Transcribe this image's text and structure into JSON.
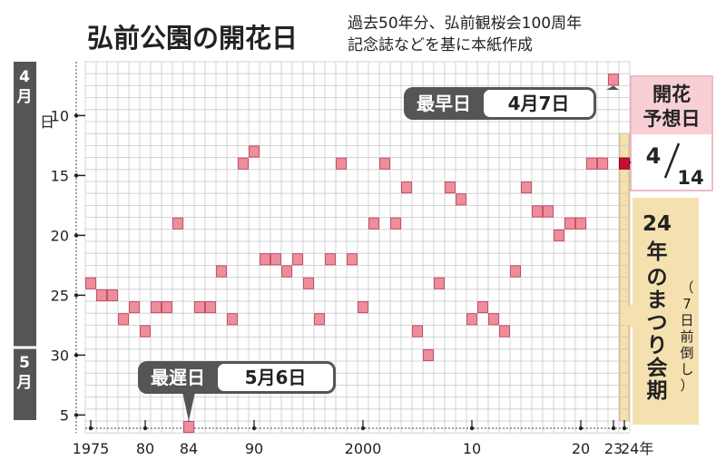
{
  "header": {
    "title": "弘前公園の開花日",
    "subtitle_line1": "過去50年分、弘前観桜会100周年",
    "subtitle_line2": "記念誌などを基に本紙作成"
  },
  "chart_data": {
    "type": "scatter",
    "title": "弘前公園の開花日",
    "x_start": 1975,
    "x_end": 2024,
    "x_tick_labels": [
      {
        "year": 1975,
        "label": "1975"
      },
      {
        "year": 1980,
        "label": "80"
      },
      {
        "year": 1984,
        "label": "84"
      },
      {
        "year": 1990,
        "label": "90"
      },
      {
        "year": 2000,
        "label": "2000"
      },
      {
        "year": 2010,
        "label": "10"
      },
      {
        "year": 2020,
        "label": "20"
      },
      {
        "year": 2023,
        "label": "23"
      },
      {
        "year": 2024,
        "label": "24年"
      }
    ],
    "y_axis": "day of April (31 = May 1)",
    "ylim": [
      6,
      37
    ],
    "y_tick_labels": [
      {
        "day": 10,
        "label": "10"
      },
      {
        "day": 15,
        "label": "15"
      },
      {
        "day": 20,
        "label": "20"
      },
      {
        "day": 25,
        "label": "25"
      },
      {
        "day": 30,
        "label": "30"
      },
      {
        "day": 35,
        "label": "5"
      }
    ],
    "month_labels": {
      "april": "4月",
      "april_day_unit": "日",
      "may": "5月"
    },
    "points": [
      {
        "year": 1975,
        "day": 24
      },
      {
        "year": 1976,
        "day": 25
      },
      {
        "year": 1977,
        "day": 25
      },
      {
        "year": 1978,
        "day": 27
      },
      {
        "year": 1979,
        "day": 26
      },
      {
        "year": 1980,
        "day": 28
      },
      {
        "year": 1981,
        "day": 26
      },
      {
        "year": 1982,
        "day": 26
      },
      {
        "year": 1983,
        "day": 19
      },
      {
        "year": 1984,
        "day": 36
      },
      {
        "year": 1985,
        "day": 26
      },
      {
        "year": 1986,
        "day": 26
      },
      {
        "year": 1987,
        "day": 23
      },
      {
        "year": 1988,
        "day": 27
      },
      {
        "year": 1989,
        "day": 14
      },
      {
        "year": 1990,
        "day": 13
      },
      {
        "year": 1991,
        "day": 22
      },
      {
        "year": 1992,
        "day": 22
      },
      {
        "year": 1993,
        "day": 23
      },
      {
        "year": 1994,
        "day": 22
      },
      {
        "year": 1995,
        "day": 24
      },
      {
        "year": 1996,
        "day": 27
      },
      {
        "year": 1997,
        "day": 22
      },
      {
        "year": 1998,
        "day": 14
      },
      {
        "year": 1999,
        "day": 22
      },
      {
        "year": 2000,
        "day": 26
      },
      {
        "year": 2001,
        "day": 19
      },
      {
        "year": 2002,
        "day": 14
      },
      {
        "year": 2003,
        "day": 19
      },
      {
        "year": 2004,
        "day": 16
      },
      {
        "year": 2005,
        "day": 28
      },
      {
        "year": 2006,
        "day": 30
      },
      {
        "year": 2007,
        "day": 24
      },
      {
        "year": 2008,
        "day": 16
      },
      {
        "year": 2009,
        "day": 17
      },
      {
        "year": 2010,
        "day": 27
      },
      {
        "year": 2011,
        "day": 26
      },
      {
        "year": 2012,
        "day": 27
      },
      {
        "year": 2013,
        "day": 28
      },
      {
        "year": 2014,
        "day": 23
      },
      {
        "year": 2015,
        "day": 16
      },
      {
        "year": 2016,
        "day": 18
      },
      {
        "year": 2017,
        "day": 18
      },
      {
        "year": 2018,
        "day": 20
      },
      {
        "year": 2019,
        "day": 19
      },
      {
        "year": 2020,
        "day": 19
      },
      {
        "year": 2021,
        "day": 14
      },
      {
        "year": 2022,
        "day": 14
      },
      {
        "year": 2023,
        "day": 7
      }
    ],
    "forecast": {
      "year": 2024,
      "day": 14
    },
    "festival_span": {
      "year": 2024,
      "from_day": 12,
      "to_day": 36
    },
    "colors": {
      "point": "#ee8d9b",
      "point_border": "#c03a57",
      "forecast": "#c8102e",
      "festival": "#f5e1b0",
      "axis_band": "#555555"
    }
  },
  "annotations": {
    "earliest": {
      "label": "最早日",
      "date": "4月7日"
    },
    "latest": {
      "label": "最遅日",
      "date": "5月6日"
    },
    "forecast_box": {
      "label_line1": "開花",
      "label_line2": "予想日",
      "month": "4",
      "day": "14"
    },
    "festival": {
      "line1": "24",
      "line2": "年",
      "line3": "のまつり会期",
      "paren": "（7日前倒し）"
    }
  }
}
